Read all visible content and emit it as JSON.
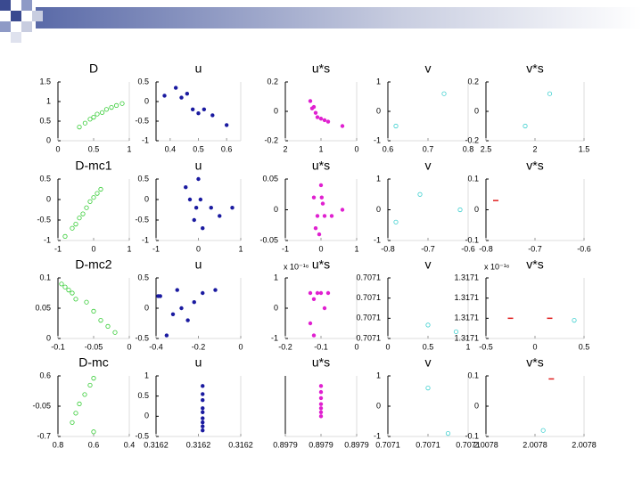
{
  "chart_data": [
    {
      "type": "scatter",
      "title": "D",
      "xlim": [
        0,
        1
      ],
      "xticks": [
        0,
        0.5,
        1
      ],
      "ylim": [
        0,
        1.5
      ],
      "yticks": [
        0,
        0.5,
        1,
        1.5
      ],
      "series": [
        {
          "color": "#33cc33",
          "marker": "circle-open",
          "x": [
            0.3,
            0.38,
            0.45,
            0.5,
            0.55,
            0.62,
            0.68,
            0.75,
            0.82,
            0.9
          ],
          "values": [
            0.35,
            0.45,
            0.55,
            0.6,
            0.68,
            0.72,
            0.8,
            0.85,
            0.9,
            0.95
          ]
        }
      ]
    },
    {
      "type": "scatter",
      "title": "u",
      "xlim": [
        0.35,
        0.65
      ],
      "xticks": [
        0.4,
        0.5,
        0.6
      ],
      "ylim": [
        -1,
        0.5
      ],
      "yticks": [
        -1,
        -0.5,
        0,
        0.5
      ],
      "series": [
        {
          "color": "#1a1aa0",
          "marker": "dot",
          "x": [
            0.38,
            0.42,
            0.44,
            0.46,
            0.48,
            0.5,
            0.52,
            0.55,
            0.6
          ],
          "values": [
            0.15,
            0.35,
            0.1,
            0.2,
            -0.2,
            -0.3,
            -0.2,
            -0.35,
            -0.6
          ]
        }
      ]
    },
    {
      "type": "scatter",
      "title": "u*s",
      "xlim": [
        2,
        0
      ],
      "xticks": [
        2,
        1,
        0
      ],
      "ylim": [
        -0.2,
        0.2
      ],
      "yticks": [
        -0.2,
        0,
        0.2
      ],
      "series": [
        {
          "color": "#e020d0",
          "marker": "dot",
          "x": [
            1.3,
            1.25,
            1.2,
            1.15,
            1.1,
            1.0,
            0.9,
            0.8,
            0.4
          ],
          "values": [
            0.07,
            0.02,
            0.03,
            -0.01,
            -0.04,
            -0.05,
            -0.06,
            -0.07,
            -0.1
          ]
        }
      ]
    },
    {
      "type": "scatter",
      "title": "v",
      "xlim": [
        0.6,
        0.8
      ],
      "xticks": [
        0.6,
        0.7,
        0.8
      ],
      "ylim": [
        -1,
        1
      ],
      "yticks": [
        -1,
        0,
        1
      ],
      "series": [
        {
          "color": "#40d0d0",
          "marker": "circle-open",
          "x": [
            0.74,
            0.62
          ],
          "values": [
            0.6,
            -0.5
          ]
        }
      ]
    },
    {
      "type": "scatter",
      "title": "v*s",
      "xlim": [
        2.5,
        1.5
      ],
      "xticks": [
        2.5,
        2,
        1.5
      ],
      "ylim": [
        -0.2,
        0.2
      ],
      "yticks": [
        -0.2,
        0,
        0.2
      ],
      "series": [
        {
          "color": "#40d0d0",
          "marker": "circle-open",
          "x": [
            1.85,
            2.1
          ],
          "values": [
            0.12,
            -0.1
          ]
        }
      ]
    },
    {
      "type": "scatter",
      "title": "D-mc1",
      "xlim": [
        -1,
        1
      ],
      "xticks": [
        -1,
        0,
        1
      ],
      "ylim": [
        -1,
        0.5
      ],
      "yticks": [
        -1,
        -0.5,
        0,
        0.5
      ],
      "series": [
        {
          "color": "#33cc33",
          "marker": "circle-open",
          "x": [
            -0.8,
            -0.6,
            -0.5,
            -0.4,
            -0.3,
            -0.2,
            -0.1,
            0,
            0.1,
            0.2
          ],
          "values": [
            -0.9,
            -0.7,
            -0.6,
            -0.45,
            -0.35,
            -0.2,
            -0.05,
            0.05,
            0.15,
            0.25
          ]
        }
      ]
    },
    {
      "type": "scatter",
      "title": "u",
      "xlim": [
        -1,
        1
      ],
      "xticks": [
        -1,
        0,
        1
      ],
      "ylim": [
        -1,
        0.5
      ],
      "yticks": [
        -1,
        -0.5,
        0,
        0.5
      ],
      "series": [
        {
          "color": "#1a1aa0",
          "marker": "dot",
          "x": [
            -0.3,
            -0.2,
            -0.1,
            0,
            0.05,
            0.1,
            0.3,
            0.5,
            0.8,
            -0.05
          ],
          "values": [
            0.3,
            0.0,
            -0.5,
            0.5,
            0.0,
            -0.7,
            -0.2,
            -0.4,
            -0.2,
            -0.2
          ]
        }
      ]
    },
    {
      "type": "scatter",
      "title": "u*s",
      "xlim": [
        -1,
        1
      ],
      "xticks": [
        -1,
        0,
        1
      ],
      "ylim": [
        -0.05,
        0.05
      ],
      "yticks": [
        -0.05,
        0,
        0.05
      ],
      "series": [
        {
          "color": "#e020d0",
          "marker": "dot",
          "x": [
            -0.2,
            -0.1,
            -0.05,
            0,
            0.05,
            0.1,
            0.3,
            0.6,
            -0.15,
            0.02
          ],
          "values": [
            0.02,
            -0.01,
            -0.04,
            0.04,
            0.01,
            -0.01,
            -0.01,
            0.0,
            -0.03,
            0.02
          ]
        }
      ]
    },
    {
      "type": "scatter",
      "title": "v",
      "xlim": [
        -0.8,
        -0.6
      ],
      "xticks": [
        -0.8,
        -0.7,
        -0.6
      ],
      "ylim": [
        -1,
        1
      ],
      "yticks": [
        -1,
        0,
        1
      ],
      "series": [
        {
          "color": "#40d0d0",
          "marker": "circle-open",
          "x": [
            -0.72,
            -0.78,
            -0.62
          ],
          "values": [
            0.5,
            -0.4,
            0.0
          ]
        }
      ]
    },
    {
      "type": "scatter",
      "title": "v*s",
      "xlim": [
        -0.8,
        -0.6
      ],
      "xticks": [
        -0.8,
        -0.7,
        -0.6
      ],
      "ylim": [
        -0.1,
        0.1
      ],
      "yticks": [
        -0.1,
        0,
        0.1
      ],
      "series": [
        {
          "color": "#e02020",
          "marker": "dash",
          "x": [
            -0.78
          ],
          "values": [
            0.03
          ]
        }
      ]
    },
    {
      "type": "scatter",
      "title": "D-mc2",
      "xlim": [
        -0.1,
        0
      ],
      "xticks": [
        -0.1,
        -0.05,
        0
      ],
      "ylim": [
        0,
        0.1
      ],
      "yticks": [
        0,
        0.05,
        0.1
      ],
      "series": [
        {
          "color": "#33cc33",
          "marker": "circle-open",
          "x": [
            -0.095,
            -0.09,
            -0.085,
            -0.08,
            -0.075,
            -0.06,
            -0.05,
            -0.04,
            -0.03,
            -0.02
          ],
          "values": [
            0.09,
            0.085,
            0.08,
            0.075,
            0.065,
            0.06,
            0.045,
            0.03,
            0.02,
            0.01
          ]
        }
      ]
    },
    {
      "type": "scatter",
      "title": "u",
      "xlim": [
        -0.4,
        0
      ],
      "xticks": [
        -0.4,
        -0.2,
        0
      ],
      "ylim": [
        -0.5,
        0.5
      ],
      "yticks": [
        -0.5,
        0,
        0.5
      ],
      "series": [
        {
          "color": "#1a1aa0",
          "marker": "dot",
          "x": [
            -0.39,
            -0.38,
            -0.32,
            -0.3,
            -0.28,
            -0.25,
            -0.22,
            -0.18,
            -0.12,
            -0.35
          ],
          "values": [
            0.2,
            0.2,
            -0.1,
            0.3,
            0,
            -0.2,
            0.1,
            0.25,
            0.3,
            -0.45
          ]
        }
      ]
    },
    {
      "type": "scatter",
      "title": "u*s",
      "annotation": "x 10⁻¹⁶",
      "xlim": [
        -0.2,
        0
      ],
      "xticks": [
        -0.2,
        -0.1,
        0
      ],
      "ylim": [
        -1,
        1
      ],
      "yticks": [
        -1,
        0,
        1
      ],
      "series": [
        {
          "color": "#e020d0",
          "marker": "dot",
          "x": [
            -0.13,
            -0.12,
            -0.11,
            -0.1,
            -0.09,
            -0.13,
            -0.12,
            -0.08
          ],
          "values": [
            0.5,
            0.3,
            0.5,
            0.5,
            0.0,
            -0.5,
            -0.9,
            0.5
          ]
        }
      ]
    },
    {
      "type": "scatter",
      "title": "v",
      "xlim": [
        0,
        1
      ],
      "xticks": [
        0,
        0.5,
        1
      ],
      "ylim": [
        0.707103,
        0.707112
      ],
      "yticks": [
        {
          "value": 0.707103,
          "label": "0.7071"
        },
        {
          "value": 0.707106,
          "label": "0.7071"
        },
        {
          "value": 0.707109,
          "label": "0.7071"
        },
        {
          "value": 0.707112,
          "label": "0.7071"
        }
      ],
      "series": [
        {
          "color": "#40d0d0",
          "marker": "circle-open",
          "x": [
            0.5,
            0.85
          ],
          "values": [
            0.707105,
            0.707104
          ]
        }
      ]
    },
    {
      "type": "scatter",
      "title": "v*s",
      "annotation": "x 10⁻¹⁶",
      "xlim": [
        -0.5,
        0.5
      ],
      "xticks": [
        -0.5,
        0,
        0.5
      ],
      "ylim": [
        1.31706,
        1.31712
      ],
      "yticks": [
        {
          "value": 1.31706,
          "label": "1.3171"
        },
        {
          "value": 1.31708,
          "label": "1.3171"
        },
        {
          "value": 1.3171,
          "label": "1.3171"
        },
        {
          "value": 1.31712,
          "label": "1.3171"
        }
      ],
      "series": [
        {
          "color": "#e02020",
          "marker": "dash",
          "x": [
            -0.25,
            0.15
          ],
          "values": [
            1.31708,
            1.31708
          ]
        },
        {
          "color": "#40d0d0",
          "marker": "circle-open",
          "x": [
            0.4
          ],
          "values": [
            1.317078
          ]
        }
      ]
    },
    {
      "type": "scatter",
      "title": "D-mc",
      "xlim": [
        0.8,
        0.4
      ],
      "xticks": [
        0.8,
        0.6,
        0.4
      ],
      "ylim": [
        -0.7,
        0.6
      ],
      "yticks": [
        -0.7,
        -0.05,
        0.6
      ],
      "series": [
        {
          "color": "#33cc33",
          "marker": "circle-open",
          "x": [
            0.6,
            0.62,
            0.65,
            0.68,
            0.7,
            0.72,
            0.6
          ],
          "values": [
            0.55,
            0.4,
            0.2,
            0,
            -0.2,
            -0.4,
            -0.6
          ]
        }
      ]
    },
    {
      "type": "scatter",
      "title": "u",
      "xlim": [
        0.31618,
        0.31624
      ],
      "xticks": [
        {
          "value": 0.31618,
          "label": "0.3162"
        },
        {
          "value": 0.31621,
          "label": "0.3162"
        },
        {
          "value": 0.31624,
          "label": "0.3162"
        }
      ],
      "ylim": [
        -0.5,
        1
      ],
      "yticks": [
        -0.5,
        0,
        0.5,
        1
      ],
      "series": [
        {
          "color": "#1a1aa0",
          "marker": "dot",
          "x": [
            0.316213,
            0.316213,
            0.316213,
            0.316213,
            0.316213,
            0.316213,
            0.316213,
            0.316213,
            0.316213
          ],
          "values": [
            0.75,
            0.55,
            0.4,
            0.2,
            0.1,
            -0.05,
            -0.15,
            -0.25,
            -0.35
          ]
        }
      ]
    },
    {
      "type": "scatter",
      "title": "u*s",
      "xlim": [
        0.89788,
        0.89794
      ],
      "xticks": [
        {
          "value": 0.89788,
          "label": "0.8979"
        },
        {
          "value": 0.89791,
          "label": "0.8979"
        },
        {
          "value": 0.89794,
          "label": "0.8979"
        }
      ],
      "ylim": [
        -0.5,
        1
      ],
      "series": [
        {
          "color": "#e020d0",
          "marker": "dot",
          "x": [
            0.89791,
            0.89791,
            0.89791,
            0.89791,
            0.89791,
            0.89791,
            0.89791
          ],
          "values": [
            0.75,
            0.6,
            0.45,
            0.3,
            0.2,
            0.1,
            0.0
          ]
        }
      ]
    },
    {
      "type": "scatter",
      "title": "v",
      "xlim": [
        0.70708,
        0.70712
      ],
      "xticks": [
        {
          "value": 0.70708,
          "label": "0.7071"
        },
        {
          "value": 0.7071,
          "label": "0.7071"
        },
        {
          "value": 0.70712,
          "label": "0.7071"
        }
      ],
      "ylim": [
        -1,
        1
      ],
      "yticks": [
        -1,
        0,
        1
      ],
      "series": [
        {
          "color": "#40d0d0",
          "marker": "circle-open",
          "x": [
            0.7071,
            0.70711
          ],
          "values": [
            0.6,
            -0.9
          ]
        }
      ]
    },
    {
      "type": "scatter",
      "title": "v*s",
      "xlim": [
        2.00778,
        2.00784
      ],
      "xticks": [
        {
          "value": 2.00778,
          "label": "2.0078"
        },
        {
          "value": 2.00781,
          "label": "2.0078"
        },
        {
          "value": 2.00784,
          "label": "2.0078"
        }
      ],
      "ylim": [
        -0.1,
        0.1
      ],
      "yticks": [
        -0.1,
        0,
        0.1
      ],
      "series": [
        {
          "color": "#e02020",
          "marker": "dash",
          "x": [
            2.00782
          ],
          "values": [
            0.09
          ]
        },
        {
          "color": "#40d0d0",
          "marker": "circle-open",
          "x": [
            2.007815
          ],
          "values": [
            -0.08
          ]
        }
      ]
    }
  ]
}
